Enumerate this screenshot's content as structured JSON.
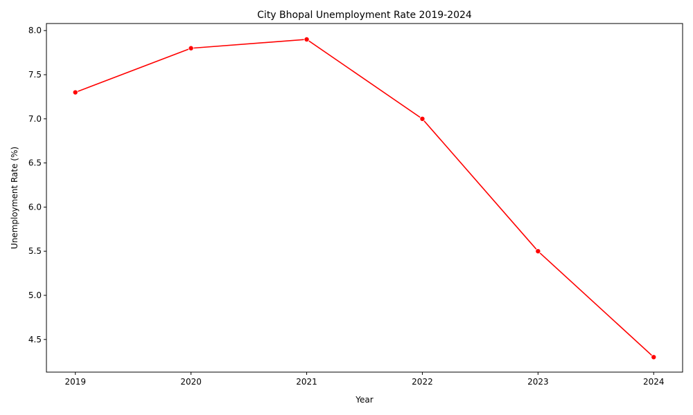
{
  "chart_data": {
    "type": "line",
    "title": "City Bhopal Unemployment Rate 2019-2024",
    "xlabel": "Year",
    "ylabel": "Unemployment Rate (%)",
    "x": [
      2019,
      2020,
      2021,
      2022,
      2023,
      2024
    ],
    "series": [
      {
        "values": [
          7.3,
          7.8,
          7.9,
          7.0,
          5.5,
          4.3
        ],
        "color": "#ff0000",
        "marker": "circle"
      }
    ],
    "xlim": [
      2018.75,
      2024.25
    ],
    "ylim": [
      4.13,
      8.08
    ],
    "x_ticks": [
      "2019",
      "2020",
      "2021",
      "2022",
      "2023",
      "2024"
    ],
    "y_ticks": [
      "4.5",
      "5.0",
      "5.5",
      "6.0",
      "6.5",
      "7.0",
      "7.5",
      "8.0"
    ],
    "grid": false,
    "legend": "none"
  }
}
